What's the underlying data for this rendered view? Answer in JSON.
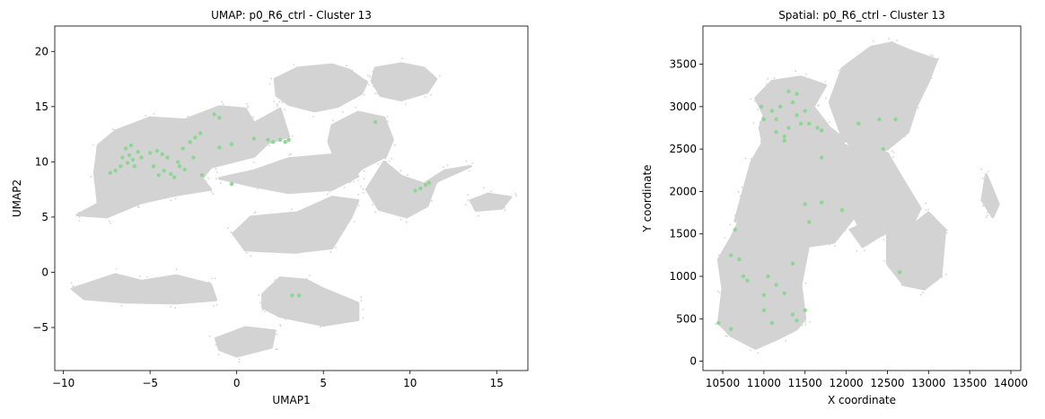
{
  "chart_data": [
    {
      "type": "scatter",
      "title": "UMAP: p0_R6_ctrl - Cluster 13",
      "xlabel": "UMAP1",
      "ylabel": "UMAP2",
      "xlim": [
        -10.5,
        16.8
      ],
      "ylim": [
        -8.9,
        22.3
      ],
      "xticks": [
        -10,
        -5,
        0,
        5,
        10,
        15
      ],
      "yticks": [
        -5,
        0,
        5,
        10,
        15,
        20
      ],
      "background_color": "#d3d3d3",
      "highlight_color": "#8dd694",
      "background_regions": [
        [
          [
            -9.2,
            5.2
          ],
          [
            -8.0,
            6.2
          ],
          [
            -8.2,
            9.0
          ],
          [
            -8.0,
            11.5
          ],
          [
            -7.0,
            12.8
          ],
          [
            -5.0,
            14.0
          ],
          [
            -3.0,
            13.8
          ],
          [
            -1.0,
            15.0
          ],
          [
            0.5,
            14.8
          ],
          [
            1.0,
            13.5
          ],
          [
            2.5,
            14.8
          ],
          [
            3.0,
            12.3
          ],
          [
            1.8,
            11.7
          ],
          [
            1.0,
            10.5
          ],
          [
            -1.5,
            9.5
          ],
          [
            -2.0,
            8.5
          ],
          [
            -1.5,
            7.5
          ],
          [
            -3.5,
            7.0
          ],
          [
            -5.5,
            6.3
          ],
          [
            -7.5,
            5.0
          ]
        ],
        [
          [
            -1.0,
            8.5
          ],
          [
            1.0,
            9.2
          ],
          [
            3.0,
            10.3
          ],
          [
            6.0,
            10.7
          ],
          [
            7.0,
            8.7
          ],
          [
            5.5,
            7.5
          ],
          [
            3.0,
            7.2
          ],
          [
            1.0,
            7.8
          ]
        ],
        [
          [
            2.2,
            17.5
          ],
          [
            3.5,
            18.5
          ],
          [
            5.5,
            18.8
          ],
          [
            6.5,
            18.3
          ],
          [
            7.5,
            17.2
          ],
          [
            7.2,
            16.2
          ],
          [
            5.8,
            15.0
          ],
          [
            4.5,
            14.6
          ],
          [
            3.0,
            15.2
          ],
          [
            2.3,
            16.0
          ]
        ],
        [
          [
            8.0,
            18.5
          ],
          [
            9.5,
            18.9
          ],
          [
            10.8,
            18.5
          ],
          [
            11.5,
            17.5
          ],
          [
            11.0,
            16.3
          ],
          [
            9.5,
            15.6
          ],
          [
            8.3,
            16.0
          ],
          [
            7.8,
            17.3
          ]
        ],
        [
          [
            5.5,
            13.3
          ],
          [
            7.0,
            14.5
          ],
          [
            8.5,
            14.0
          ],
          [
            9.0,
            12.0
          ],
          [
            8.6,
            10.5
          ],
          [
            7.2,
            9.4
          ],
          [
            6.5,
            8.2
          ],
          [
            5.8,
            9.8
          ],
          [
            5.3,
            11.8
          ]
        ],
        [
          [
            8.5,
            10.0
          ],
          [
            9.5,
            8.7
          ],
          [
            10.8,
            8.0
          ],
          [
            12.0,
            9.2
          ],
          [
            13.5,
            9.6
          ],
          [
            11.5,
            8.2
          ],
          [
            11.0,
            6.0
          ],
          [
            9.8,
            5.0
          ],
          [
            8.2,
            5.7
          ],
          [
            7.5,
            7.5
          ]
        ],
        [
          [
            -0.2,
            3.5
          ],
          [
            0.8,
            5.0
          ],
          [
            3.5,
            5.4
          ],
          [
            5.5,
            6.8
          ],
          [
            7.0,
            6.5
          ],
          [
            6.6,
            5.0
          ],
          [
            5.5,
            2.2
          ],
          [
            3.3,
            1.8
          ],
          [
            0.5,
            2.0
          ]
        ],
        [
          [
            13.5,
            6.5
          ],
          [
            14.5,
            7.1
          ],
          [
            15.8,
            6.8
          ],
          [
            15.3,
            5.8
          ],
          [
            13.8,
            5.6
          ]
        ],
        [
          [
            -9.5,
            -1.5
          ],
          [
            -7.0,
            -0.2
          ],
          [
            -5.5,
            -0.8
          ],
          [
            -3.5,
            -0.3
          ],
          [
            -1.5,
            -1.1
          ],
          [
            -1.2,
            -2.5
          ],
          [
            -3.5,
            -2.8
          ],
          [
            -6.5,
            -2.7
          ],
          [
            -8.8,
            -2.4
          ]
        ],
        [
          [
            1.5,
            -2.0
          ],
          [
            2.5,
            -0.5
          ],
          [
            4.0,
            -0.7
          ],
          [
            5.0,
            -1.5
          ],
          [
            7.0,
            -2.8
          ],
          [
            7.0,
            -4.3
          ],
          [
            5.0,
            -4.8
          ],
          [
            2.5,
            -4.0
          ],
          [
            1.5,
            -3.2
          ]
        ],
        [
          [
            -1.2,
            -6.0
          ],
          [
            0.5,
            -5.0
          ],
          [
            2.2,
            -5.3
          ],
          [
            2.0,
            -6.8
          ],
          [
            0.0,
            -7.6
          ],
          [
            -1.0,
            -7.0
          ]
        ]
      ],
      "highlight_points": [
        [
          -6.4,
          11.2
        ],
        [
          -6.2,
          10.6
        ],
        [
          -6.0,
          10.2
        ],
        [
          -5.7,
          10.9
        ],
        [
          -6.6,
          10.4
        ],
        [
          -6.3,
          9.9
        ],
        [
          -5.9,
          9.6
        ],
        [
          -5.5,
          10.4
        ],
        [
          -6.1,
          11.5
        ],
        [
          -6.7,
          9.6
        ],
        [
          -7.0,
          9.2
        ],
        [
          -7.3,
          9.0
        ],
        [
          -5.0,
          10.8
        ],
        [
          -4.6,
          11.0
        ],
        [
          -4.3,
          10.7
        ],
        [
          -4.8,
          9.6
        ],
        [
          -4.5,
          8.8
        ],
        [
          -4.2,
          9.2
        ],
        [
          -3.8,
          8.9
        ],
        [
          -3.6,
          8.6
        ],
        [
          -3.3,
          9.6
        ],
        [
          -3.0,
          9.3
        ],
        [
          -2.7,
          11.8
        ],
        [
          -2.4,
          12.2
        ],
        [
          -2.5,
          10.4
        ],
        [
          -2.1,
          12.6
        ],
        [
          -2.0,
          8.8
        ],
        [
          -3.1,
          11.2
        ],
        [
          -1.3,
          14.3
        ],
        [
          -1.0,
          14.0
        ],
        [
          -0.3,
          11.6
        ],
        [
          -0.3,
          8.0
        ],
        [
          1.0,
          12.1
        ],
        [
          1.8,
          12.0
        ],
        [
          2.1,
          11.8
        ],
        [
          2.5,
          12.0
        ],
        [
          2.8,
          11.8
        ],
        [
          3.0,
          12.0
        ],
        [
          10.3,
          7.4
        ],
        [
          10.6,
          7.6
        ],
        [
          10.9,
          7.9
        ],
        [
          11.1,
          8.1
        ],
        [
          8.0,
          13.6
        ],
        [
          3.2,
          -2.1
        ],
        [
          3.6,
          -2.1
        ],
        [
          -1.0,
          11.3
        ],
        [
          -4.0,
          10.4
        ],
        [
          -3.4,
          10.0
        ]
      ]
    },
    {
      "type": "scatter",
      "title": "Spatial: p0_R6_ctrl - Cluster 13",
      "xlabel": "X coordinate",
      "ylabel": "Y coordinate",
      "xlim": [
        10260,
        14120
      ],
      "ylim": [
        -110,
        3950
      ],
      "xticks": [
        10500,
        11000,
        11500,
        12000,
        12500,
        13000,
        13500,
        14000
      ],
      "yticks": [
        0,
        500,
        1000,
        1500,
        2000,
        2500,
        3000,
        3500
      ],
      "background_color": "#d3d3d3",
      "highlight_color": "#8dd694",
      "background_regions": [
        [
          [
            10450,
            1200
          ],
          [
            10500,
            850
          ],
          [
            10450,
            450
          ],
          [
            10600,
            300
          ],
          [
            10900,
            150
          ],
          [
            11200,
            280
          ],
          [
            11400,
            380
          ],
          [
            11500,
            500
          ],
          [
            11450,
            900
          ],
          [
            11550,
            1400
          ],
          [
            11450,
            1700
          ],
          [
            10950,
            1700
          ],
          [
            10700,
            1650
          ],
          [
            10600,
            1450
          ]
        ],
        [
          [
            10650,
            1650
          ],
          [
            10750,
            2000
          ],
          [
            10850,
            2350
          ],
          [
            11000,
            2600
          ],
          [
            11600,
            2700
          ],
          [
            12100,
            2500
          ],
          [
            12200,
            2150
          ],
          [
            12100,
            1700
          ],
          [
            11850,
            1400
          ],
          [
            11500,
            1350
          ],
          [
            11100,
            1500
          ]
        ],
        [
          [
            11000,
            2500
          ],
          [
            10950,
            2750
          ],
          [
            11000,
            2900
          ],
          [
            10900,
            3100
          ],
          [
            11100,
            3300
          ],
          [
            11450,
            3350
          ],
          [
            11750,
            3250
          ],
          [
            11600,
            3000
          ],
          [
            11800,
            2750
          ],
          [
            12000,
            2600
          ],
          [
            11600,
            2400
          ],
          [
            11300,
            2450
          ]
        ],
        [
          [
            11800,
            3050
          ],
          [
            11950,
            3450
          ],
          [
            12300,
            3700
          ],
          [
            12550,
            3750
          ],
          [
            12800,
            3650
          ],
          [
            13100,
            3550
          ],
          [
            13000,
            3300
          ],
          [
            12850,
            3000
          ],
          [
            12750,
            2700
          ],
          [
            12500,
            2500
          ],
          [
            12200,
            2400
          ],
          [
            11950,
            2650
          ]
        ],
        [
          [
            11900,
            2400
          ],
          [
            12200,
            2550
          ],
          [
            12500,
            2450
          ],
          [
            12650,
            2200
          ],
          [
            12900,
            1800
          ],
          [
            12800,
            1600
          ],
          [
            12500,
            1500
          ],
          [
            12150,
            1600
          ],
          [
            12000,
            1900
          ]
        ],
        [
          [
            12500,
            1500
          ],
          [
            12800,
            1600
          ],
          [
            13000,
            1750
          ],
          [
            13200,
            1550
          ],
          [
            13150,
            1000
          ],
          [
            12950,
            850
          ],
          [
            12700,
            900
          ],
          [
            12500,
            1150
          ]
        ],
        [
          [
            12450,
            1500
          ],
          [
            12200,
            1350
          ],
          [
            12050,
            1550
          ],
          [
            12300,
            1650
          ]
        ],
        [
          [
            13700,
            2200
          ],
          [
            13850,
            1850
          ],
          [
            13780,
            1700
          ],
          [
            13650,
            1900
          ]
        ]
      ],
      "highlight_points": [
        [
          11350,
          3050
        ],
        [
          11200,
          3000
        ],
        [
          11400,
          2900
        ],
        [
          11150,
          2850
        ],
        [
          11300,
          2750
        ],
        [
          11450,
          2800
        ],
        [
          11250,
          2650
        ],
        [
          11100,
          2950
        ],
        [
          11400,
          3150
        ],
        [
          11000,
          2850
        ],
        [
          11550,
          2800
        ],
        [
          11650,
          2750
        ],
        [
          11250,
          2600
        ],
        [
          11150,
          2700
        ],
        [
          11500,
          2950
        ],
        [
          11300,
          3180
        ],
        [
          10970,
          3000
        ],
        [
          11700,
          2720
        ],
        [
          12150,
          2800
        ],
        [
          12400,
          2850
        ],
        [
          12600,
          2850
        ],
        [
          12450,
          2500
        ],
        [
          11700,
          2400
        ],
        [
          11500,
          1850
        ],
        [
          11700,
          1870
        ],
        [
          11950,
          1780
        ],
        [
          11550,
          1640
        ],
        [
          10650,
          1550
        ],
        [
          10600,
          1250
        ],
        [
          10700,
          1200
        ],
        [
          10750,
          1000
        ],
        [
          10800,
          950
        ],
        [
          10600,
          380
        ],
        [
          10450,
          450
        ],
        [
          11050,
          1000
        ],
        [
          11150,
          900
        ],
        [
          11350,
          1150
        ],
        [
          11000,
          600
        ],
        [
          11100,
          450
        ],
        [
          11350,
          550
        ],
        [
          11400,
          480
        ],
        [
          11250,
          800
        ],
        [
          11500,
          600
        ],
        [
          12650,
          1050
        ],
        [
          11000,
          780
        ]
      ]
    }
  ]
}
